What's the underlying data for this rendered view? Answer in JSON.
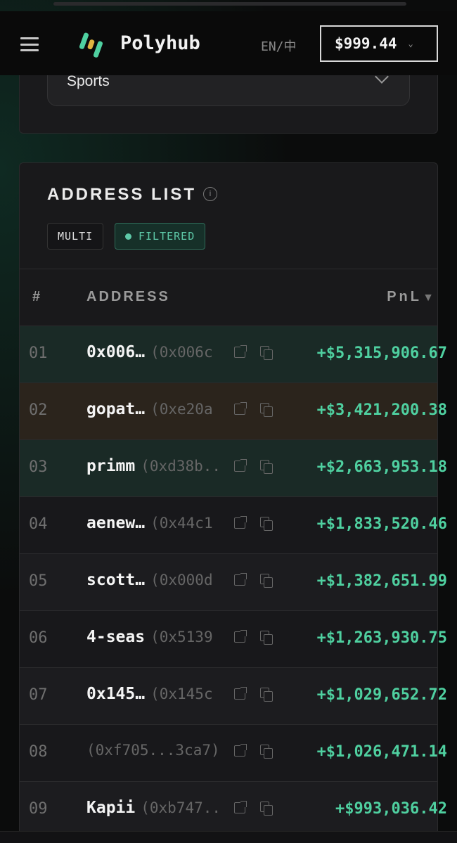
{
  "header": {
    "brand": "Polyhub",
    "language": "EN/中",
    "balance": "$999.44"
  },
  "filter": {
    "category": "Sports"
  },
  "address_list": {
    "title": "ADDRESS LIST",
    "tags": [
      "MULTI",
      "FILTERED"
    ],
    "columns": {
      "rank": "#",
      "address": "ADDRESS",
      "pnl": "PnL"
    },
    "rows": [
      {
        "rank": "01",
        "name": "0x006…",
        "addr": "(0x006c",
        "pnl": "+$5,315,906.67",
        "bg": "#1a2a26"
      },
      {
        "rank": "02",
        "name": "gopat…",
        "addr": "(0xe20a",
        "pnl": "+$3,421,200.38",
        "bg": "#2b241c"
      },
      {
        "rank": "03",
        "name": "primm",
        "addr": "(0xd38b..",
        "pnl": "+$2,663,953.18",
        "bg": "#1a2a26"
      },
      {
        "rank": "04",
        "name": "aenew…",
        "addr": "(0x44c1",
        "pnl": "+$1,833,520.46",
        "bg": "#18181b"
      },
      {
        "rank": "05",
        "name": "scott…",
        "addr": "(0x000d",
        "pnl": "+$1,382,651.99",
        "bg": "#1c1c1f"
      },
      {
        "rank": "06",
        "name": "4-seas",
        "addr": "(0x5139",
        "pnl": "+$1,263,930.75",
        "bg": "#18181b"
      },
      {
        "rank": "07",
        "name": "0x145…",
        "addr": "(0x145c",
        "pnl": "+$1,029,652.72",
        "bg": "#1c1c1f"
      },
      {
        "rank": "08",
        "name": "",
        "addr": "(0xf705...3ca7)",
        "pnl": "+$1,026,471.14",
        "bg": "#18181b"
      },
      {
        "rank": "09",
        "name": "Kapii",
        "addr": "(0xb747..",
        "pnl": "+$993,036.42",
        "bg": "#1c1c1f"
      }
    ]
  },
  "colors": {
    "accent": "#4fd0a0",
    "background": "#0b0c0c"
  }
}
